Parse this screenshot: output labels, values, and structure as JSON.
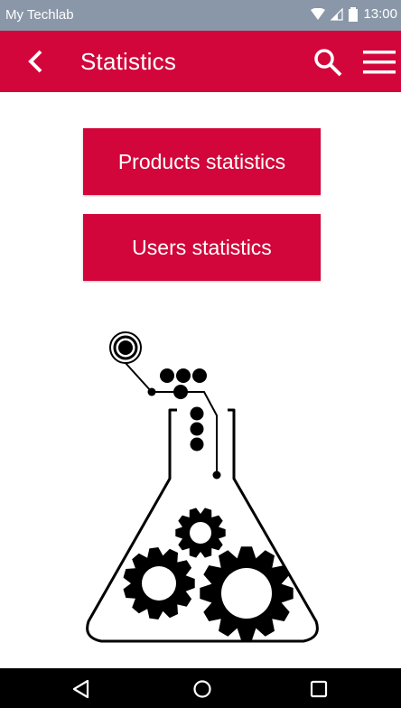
{
  "status_bar": {
    "app_name": "My Techlab",
    "time": "13:00"
  },
  "toolbar": {
    "title": "Statistics",
    "icons": [
      "chevron-left-icon",
      "search-icon",
      "menu-icon"
    ]
  },
  "buttons": {
    "products_label": "Products statistics",
    "users_label": "Users statistics"
  },
  "illustration": {
    "icon": "flask-gears-icon"
  },
  "nav_bar": {
    "icons": [
      "nav-back-icon",
      "nav-home-icon",
      "nav-recents-icon"
    ]
  },
  "colors": {
    "accent": "#d2063a",
    "status_bar": "#8a97a8",
    "nav_bar": "#000000"
  }
}
